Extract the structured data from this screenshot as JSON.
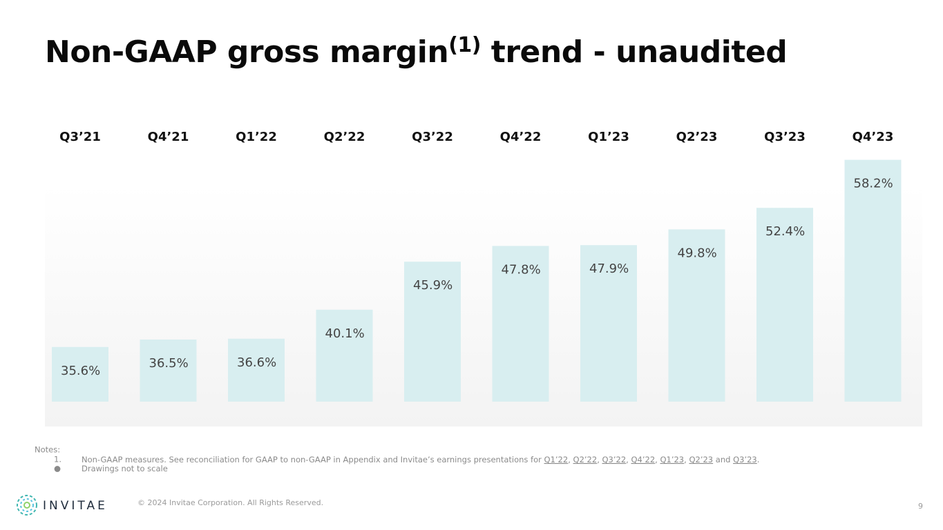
{
  "header": {
    "title": "Non-GAAP gross margin",
    "title_sup": "(1)",
    "title_rest": " trend - unaudited"
  },
  "chart_data": {
    "type": "bar",
    "categories": [
      "Q3’21",
      "Q4’21",
      "Q1’22",
      "Q2’22",
      "Q3’22",
      "Q4’22",
      "Q1’23",
      "Q2’23",
      "Q3’23",
      "Q4’23"
    ],
    "values": [
      35.6,
      36.5,
      36.6,
      40.1,
      45.9,
      47.8,
      47.9,
      49.8,
      52.4,
      58.2
    ],
    "value_labels": [
      "35.6%",
      "36.5%",
      "36.6%",
      "40.1%",
      "45.9%",
      "47.8%",
      "47.9%",
      "49.8%",
      "52.4%",
      "58.2%"
    ],
    "color": "#d8eef0",
    "ylim": [
      29,
      60
    ]
  },
  "notes": {
    "heading": "Notes:",
    "items": [
      {
        "marker": "1.",
        "parts": [
          {
            "text": "Non-GAAP measures. See reconciliation for GAAP to non-GAAP in Appendix and Invitae’s earnings presentations for ",
            "link": false
          },
          {
            "text": "Q1’22",
            "link": true
          },
          {
            "text": ", ",
            "link": false
          },
          {
            "text": "Q2’22",
            "link": true
          },
          {
            "text": ", ",
            "link": false
          },
          {
            "text": "Q3’22",
            "link": true
          },
          {
            "text": ", ",
            "link": false
          },
          {
            "text": "Q4’22",
            "link": true
          },
          {
            "text": ", ",
            "link": false
          },
          {
            "text": "Q1’23",
            "link": true
          },
          {
            "text": ", ",
            "link": false
          },
          {
            "text": "Q2’23",
            "link": true
          },
          {
            "text": " and ",
            "link": false
          },
          {
            "text": "Q3’23",
            "link": true
          },
          {
            "text": ".",
            "link": false
          }
        ]
      },
      {
        "marker": "●",
        "parts": [
          {
            "text": "Drawings not to scale",
            "link": false
          }
        ]
      }
    ]
  },
  "footer": {
    "logo": "INVITAE",
    "copyright": "© 2024 Invitae Corporation. All Rights Reserved.",
    "page": "9"
  }
}
